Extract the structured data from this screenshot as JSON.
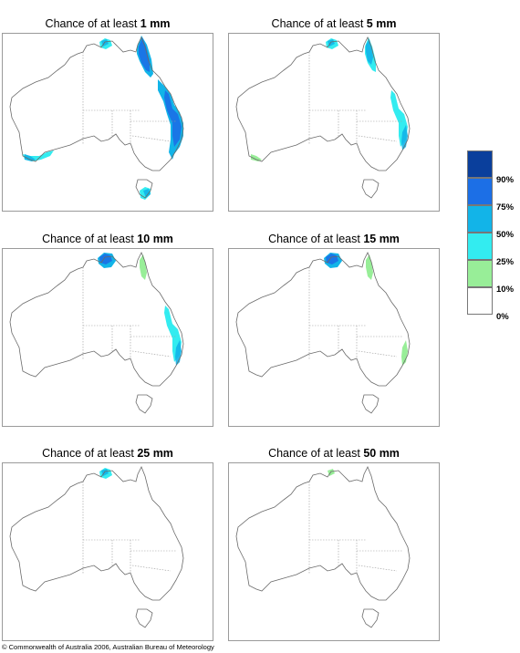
{
  "panels": [
    {
      "prefix": "Chance of at least",
      "amount": "1 mm",
      "levels": {
        "cape_york": 3,
        "darwin": 2,
        "east_coast": 3,
        "southwest": 2,
        "tasmania": 2
      }
    },
    {
      "prefix": "Chance of at least",
      "amount": "5 mm",
      "levels": {
        "cape_york": 2,
        "darwin": 2,
        "east_coast": 2,
        "southwest": 1,
        "tasmania": 0
      }
    },
    {
      "prefix": "Chance of at least",
      "amount": "10 mm",
      "levels": {
        "cape_york": 1,
        "darwin": 3,
        "east_coast": 2,
        "southwest": 0,
        "tasmania": 0
      }
    },
    {
      "prefix": "Chance of at least",
      "amount": "15 mm",
      "levels": {
        "cape_york": 1,
        "darwin": 3,
        "east_coast": 1,
        "southwest": 0,
        "tasmania": 0
      }
    },
    {
      "prefix": "Chance of at least",
      "amount": "25 mm",
      "levels": {
        "cape_york": 0,
        "darwin": 2,
        "east_coast": 0,
        "southwest": 0,
        "tasmania": 0
      }
    },
    {
      "prefix": "Chance of at least",
      "amount": "50 mm",
      "levels": {
        "cape_york": 0,
        "darwin": 1,
        "east_coast": 0,
        "southwest": 0,
        "tasmania": 0
      }
    }
  ],
  "legend": {
    "items": [
      {
        "label": "90%",
        "color": "#0a3f9c"
      },
      {
        "label": "75%",
        "color": "#1c6fe6"
      },
      {
        "label": "50%",
        "color": "#12b4e8"
      },
      {
        "label": "25%",
        "color": "#33ecf0"
      },
      {
        "label": "10%",
        "color": "#98ee98"
      },
      {
        "label": "0%",
        "color": "#ffffff"
      }
    ]
  },
  "copyright": "© Commonwealth of Australia 2006, Australian Bureau of Meteorology"
}
